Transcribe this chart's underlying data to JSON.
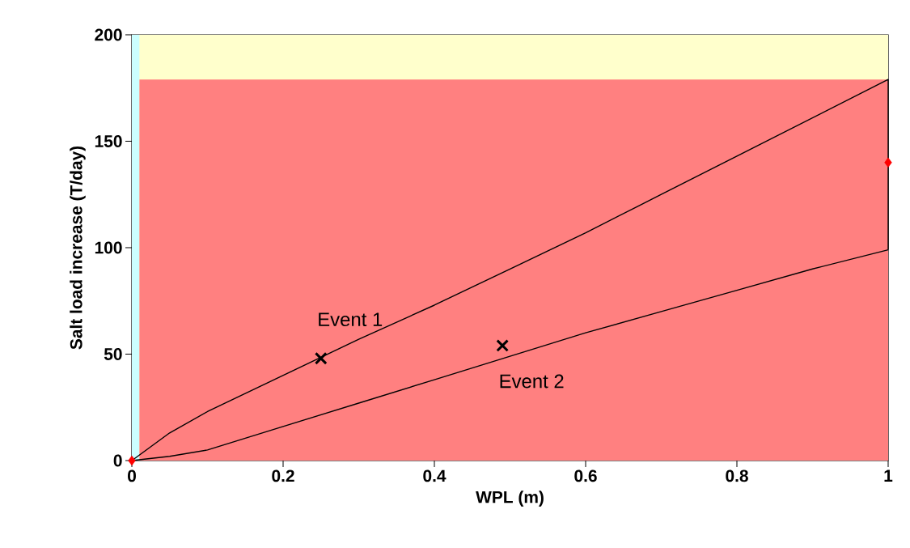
{
  "chart_data": {
    "type": "line",
    "xlabel": "WPL (m)",
    "ylabel": "Salt load increase (T/day)",
    "xlim": [
      0,
      1
    ],
    "ylim": [
      0,
      200
    ],
    "xticks": [
      0,
      0.2,
      0.4,
      0.6,
      0.8,
      1
    ],
    "yticks": [
      0,
      50,
      100,
      150,
      200
    ],
    "grid": false,
    "bands": [
      {
        "axis": "y",
        "from": 0,
        "to": 200,
        "color": "#ffffcc"
      },
      {
        "axis": "x",
        "from": 0,
        "to": 0.01,
        "color": "#ccffff"
      }
    ],
    "series": [
      {
        "type": "area",
        "color": "#ff8080",
        "x": [
          0.01,
          1
        ],
        "values": [
          179,
          179
        ]
      },
      {
        "color": "#000000",
        "marker": "none",
        "x": [
          0,
          0.05,
          0.1,
          0.2,
          0.3,
          0.4,
          0.5,
          0.6,
          0.7,
          0.8,
          0.9,
          1,
          1
        ],
        "values": [
          0,
          13,
          23,
          40,
          57,
          73,
          90,
          107,
          125,
          143,
          161,
          179,
          99
        ]
      },
      {
        "color": "#000000",
        "marker": "none",
        "x": [
          0,
          0.05,
          0.1,
          0.2,
          0.3,
          0.4,
          0.5,
          0.6,
          0.7,
          0.8,
          0.9,
          1
        ],
        "values": [
          0,
          2,
          5,
          16,
          27,
          38,
          49,
          60,
          70,
          80,
          90,
          99
        ]
      },
      {
        "type": "scatter",
        "color": "#000000",
        "marker": "cross",
        "x": [
          0.25,
          0.49
        ],
        "values": [
          48,
          54
        ]
      },
      {
        "type": "scatter",
        "color": "#ff0000",
        "marker": "diamond",
        "x": [
          0,
          1
        ],
        "values": [
          0,
          140
        ]
      }
    ],
    "annotations": [
      {
        "text": "Event 1",
        "x": 0.25,
        "y": 48
      },
      {
        "text": "Event 2",
        "x": 0.49,
        "y": 54
      }
    ]
  }
}
